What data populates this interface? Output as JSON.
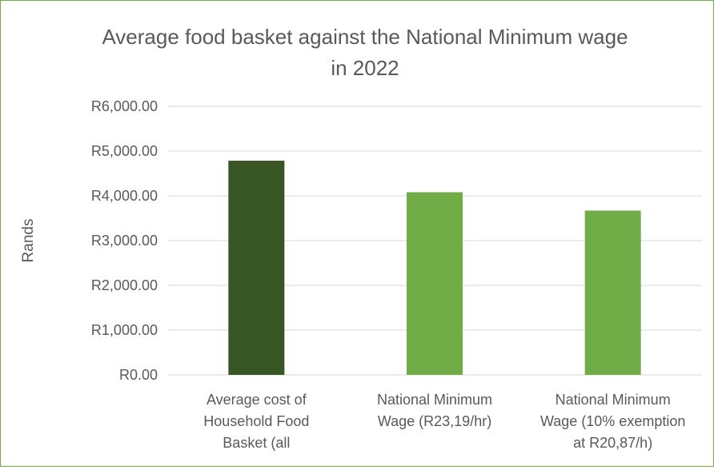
{
  "chart_data": {
    "type": "bar",
    "title_lines": [
      "Average food basket against the National Minimum wage",
      "in 2022"
    ],
    "ylabel": "Rands",
    "xlabel": "",
    "ylim": [
      0,
      6000
    ],
    "y_ticks": [
      0,
      1000,
      2000,
      3000,
      4000,
      5000,
      6000
    ],
    "y_tick_labels": [
      "R0.00",
      "R1,000.00",
      "R2,000.00",
      "R3,000.00",
      "R4,000.00",
      "R5,000.00",
      "R6,000.00"
    ],
    "grid": true,
    "legend": "none",
    "categories": [
      "Average cost of Household Food Basket (all",
      "National Minimum Wage (R23,19/hr)",
      "National Minimum Wage (10% exemption at R20,87/h)"
    ],
    "category_lines": [
      [
        "Average cost of",
        "Household Food",
        "Basket (all"
      ],
      [
        "National Minimum",
        "Wage (R23,19/hr)"
      ],
      [
        "National Minimum",
        "Wage (10% exemption",
        "at R20,87/h)"
      ]
    ],
    "values": [
      4785,
      4080,
      3670
    ],
    "colors": [
      "#375623",
      "#70ad47",
      "#70ad47"
    ],
    "gridline_color": "#d9d9d9"
  }
}
